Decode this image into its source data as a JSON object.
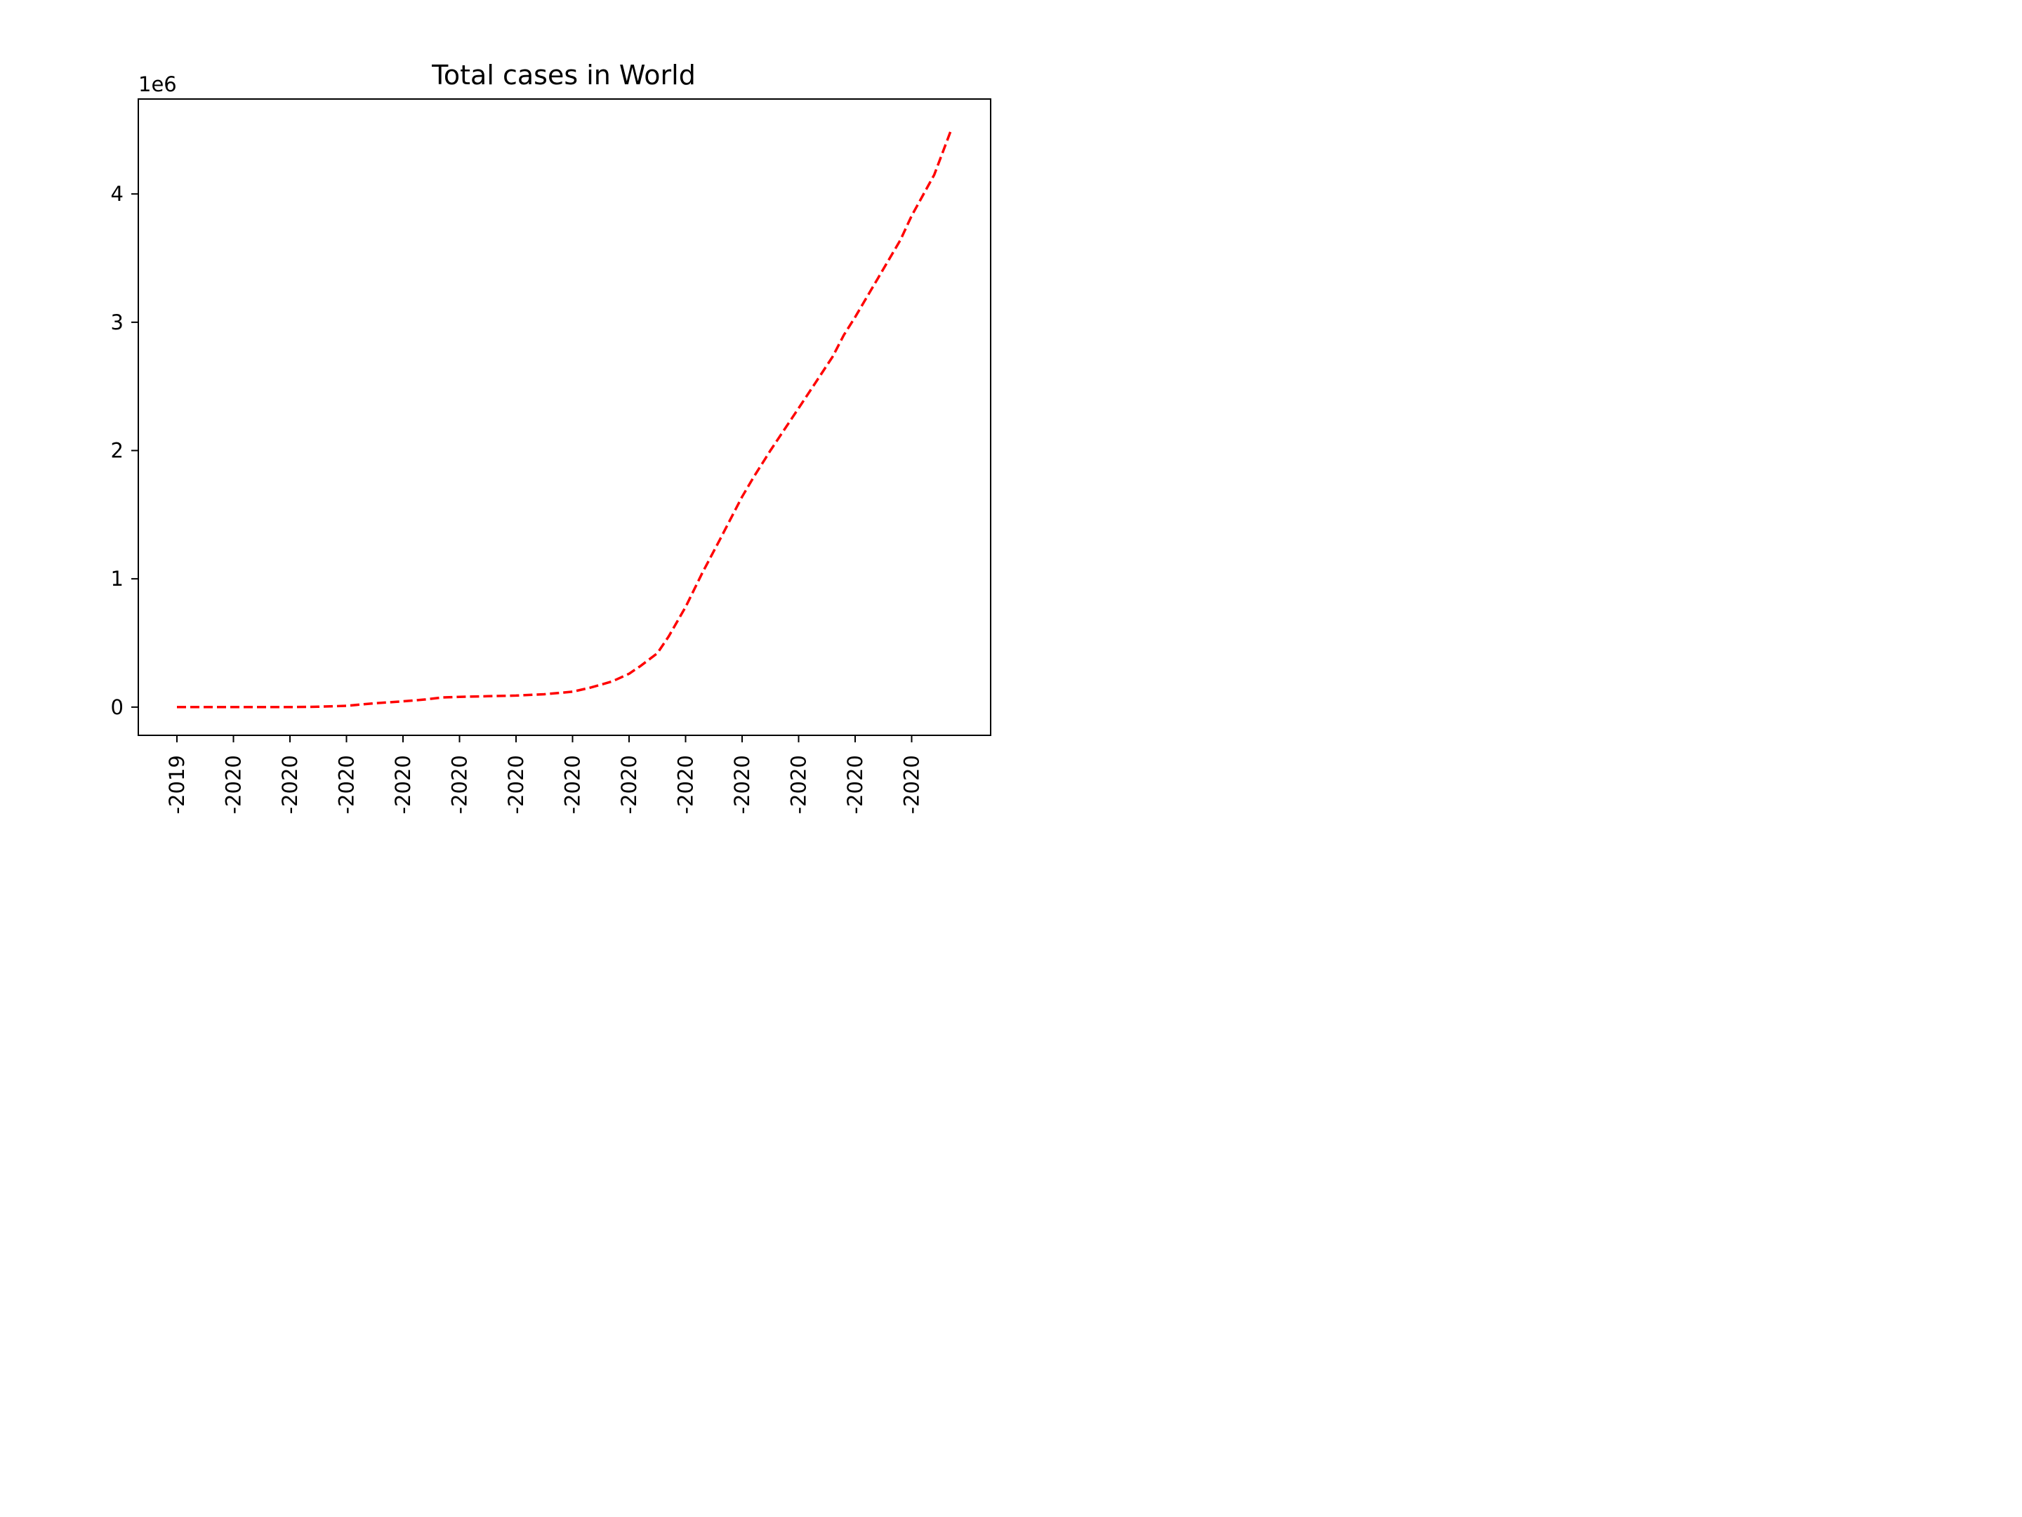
{
  "chart_data": {
    "type": "line",
    "title": "Total cases in World",
    "xlabel": "",
    "ylabel": "",
    "y_offset_text": "1e6",
    "ylim": [
      -220000,
      4740000
    ],
    "y_ticks": [
      0,
      1,
      2,
      3,
      4
    ],
    "x_tick_labels": [
      "-2019",
      "-2020",
      "-2020",
      "-2020",
      "-2020",
      "-2020",
      "-2020",
      "-2020",
      "-2020",
      "-2020",
      "-2020",
      "-2020",
      "-2020",
      "-2020"
    ],
    "line_color": "#ff0000",
    "line_style": "dashed",
    "grid": false,
    "legend": "none",
    "series": [
      {
        "x": [
          0,
          0.5,
          1,
          1.5,
          2,
          2.5,
          3,
          3.2,
          3.5,
          4,
          4.4,
          4.7,
          5,
          5.5,
          6,
          6.5,
          7,
          7.3,
          7.7,
          8,
          8.2,
          8.5,
          8.7,
          9,
          9.3,
          9.6,
          10,
          10.2,
          10.5,
          11,
          11.3,
          11.6,
          11.8,
          12,
          12.4,
          12.8,
          13,
          13.4,
          13.7
        ],
        "y": [
          0,
          0,
          0,
          0,
          0,
          3000,
          10000,
          18000,
          30000,
          45000,
          60000,
          75000,
          80000,
          85000,
          90000,
          100000,
          120000,
          150000,
          200000,
          260000,
          320000,
          420000,
          550000,
          780000,
          1050000,
          1300000,
          1640000,
          1790000,
          2000000,
          2330000,
          2530000,
          2730000,
          2900000,
          3040000,
          3340000,
          3640000,
          3830000,
          4150000,
          4500000
        ]
      }
    ]
  }
}
